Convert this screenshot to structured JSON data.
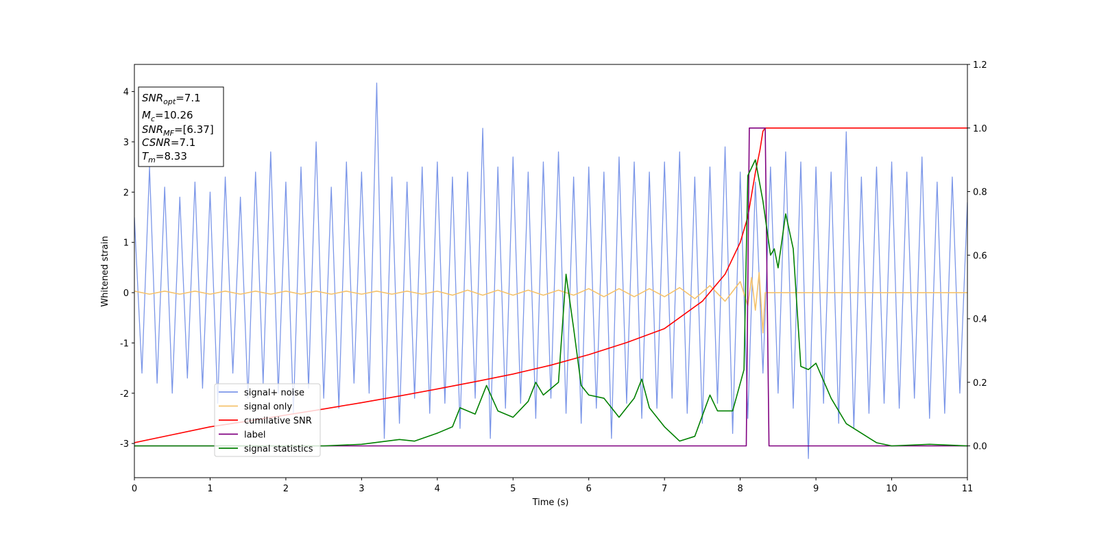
{
  "chart_data": {
    "type": "line",
    "xlabel": "Time (s)",
    "ylabel": "Whitened strain",
    "xlim": [
      0,
      11
    ],
    "ylim": [
      -3.68,
      4.54
    ],
    "y2lim": [
      -0.1,
      1.2
    ],
    "xticks": [
      0,
      1,
      2,
      3,
      4,
      5,
      6,
      7,
      8,
      9,
      10,
      11
    ],
    "yticks": [
      -3,
      -2,
      -1,
      0,
      1,
      2,
      3,
      4
    ],
    "y2ticks": [
      {
        "value": 0,
        "label": "0.0"
      },
      {
        "value": 0.2,
        "label": "0.2"
      },
      {
        "value": 0.4,
        "label": "0.4"
      },
      {
        "value": 0.6,
        "label": "0.6"
      },
      {
        "value": 0.8,
        "label": "0.8"
      },
      {
        "value": 1,
        "label": "1.0"
      },
      {
        "value": 1.2,
        "label": "1.2"
      }
    ],
    "annotations": [
      {
        "text": "SNR",
        "sub": "opt",
        "rest": "=7.1"
      },
      {
        "text": "M",
        "sub": "c",
        "rest": "=10.26"
      },
      {
        "text": "SNR",
        "sub": "MF",
        "rest": "=[6.37]"
      },
      {
        "text": "CSNR",
        "sub": "",
        "rest": "=7.1"
      },
      {
        "text": "T",
        "sub": "m",
        "rest": "=8.33"
      }
    ],
    "series": [
      {
        "name": "signal+ noise",
        "color": "#7b96e8",
        "axis": "y",
        "x": [
          0,
          0.1,
          0.2,
          0.3,
          0.4,
          0.5,
          0.6,
          0.7,
          0.8,
          0.9,
          1,
          1.1,
          1.2,
          1.3,
          1.4,
          1.5,
          1.6,
          1.7,
          1.8,
          1.9,
          2,
          2.1,
          2.2,
          2.3,
          2.4,
          2.5,
          2.6,
          2.7,
          2.8,
          2.9,
          3,
          3.1,
          3.2,
          3.3,
          3.4,
          3.5,
          3.6,
          3.7,
          3.8,
          3.9,
          4,
          4.1,
          4.2,
          4.3,
          4.4,
          4.5,
          4.6,
          4.7,
          4.8,
          4.9,
          5,
          5.1,
          5.2,
          5.3,
          5.4,
          5.5,
          5.6,
          5.7,
          5.8,
          5.9,
          6,
          6.1,
          6.2,
          6.3,
          6.4,
          6.5,
          6.6,
          6.7,
          6.8,
          6.9,
          7,
          7.1,
          7.2,
          7.3,
          7.4,
          7.5,
          7.6,
          7.7,
          7.8,
          7.9,
          8,
          8.1,
          8.2,
          8.3,
          8.4,
          8.5,
          8.6,
          8.7,
          8.8,
          8.9,
          9,
          9.1,
          9.2,
          9.3,
          9.4,
          9.5,
          9.6,
          9.7,
          9.8,
          9.9,
          10,
          10.1,
          10.2,
          10.3,
          10.4,
          10.5,
          10.6,
          10.7,
          10.8,
          10.9,
          11
        ],
        "values": [
          1.5,
          -1.6,
          2.5,
          -1.8,
          2.1,
          -2.0,
          1.9,
          -1.7,
          2.2,
          -1.9,
          2.0,
          -2.2,
          2.3,
          -1.6,
          1.9,
          -2.1,
          2.4,
          -1.8,
          2.8,
          -2.0,
          2.2,
          -2.4,
          2.5,
          -1.9,
          3.0,
          -2.1,
          2.1,
          -2.3,
          2.6,
          -1.8,
          2.4,
          -2.0,
          4.17,
          -2.9,
          2.3,
          -2.6,
          2.2,
          -2.1,
          2.5,
          -2.4,
          2.6,
          -2.2,
          2.3,
          -2.7,
          2.4,
          -2.1,
          3.27,
          -2.9,
          2.5,
          -2.3,
          2.7,
          -2.2,
          2.4,
          -2.5,
          2.6,
          -2.1,
          2.8,
          -2.4,
          2.3,
          -2.6,
          2.5,
          -2.3,
          2.4,
          -2.9,
          2.7,
          -2.2,
          2.6,
          -2.5,
          2.4,
          -2.3,
          2.6,
          -2.1,
          2.8,
          -2.4,
          2.3,
          -2.6,
          2.5,
          -2.2,
          2.9,
          -2.8,
          2.4,
          -2.5,
          2.2,
          -1.6,
          2.5,
          -2.0,
          2.8,
          -2.3,
          2.6,
          -3.3,
          2.5,
          -2.2,
          2.4,
          -2.6,
          3.2,
          -2.7,
          2.3,
          -2.4,
          2.5,
          -2.2,
          2.6,
          -2.3,
          2.4,
          -2.1,
          2.7,
          -2.5,
          2.2,
          -2.4,
          2.3,
          -2.0,
          1.8
        ]
      },
      {
        "name": "signal only",
        "color": "#f5c26b",
        "axis": "y",
        "x": [
          0,
          0.2,
          0.4,
          0.6,
          0.8,
          1,
          1.2,
          1.4,
          1.6,
          1.8,
          2,
          2.2,
          2.4,
          2.6,
          2.8,
          3,
          3.2,
          3.4,
          3.6,
          3.8,
          4,
          4.2,
          4.4,
          4.6,
          4.8,
          5,
          5.2,
          5.4,
          5.6,
          5.8,
          6,
          6.2,
          6.4,
          6.6,
          6.8,
          7,
          7.2,
          7.4,
          7.6,
          7.8,
          8,
          8.1,
          8.15,
          8.2,
          8.25,
          8.3,
          8.33,
          11
        ],
        "values": [
          0.03,
          -0.03,
          0.03,
          -0.03,
          0.03,
          -0.03,
          0.03,
          -0.03,
          0.03,
          -0.03,
          0.03,
          -0.03,
          0.03,
          -0.03,
          0.03,
          -0.03,
          0.03,
          -0.03,
          0.03,
          -0.03,
          0.03,
          -0.05,
          0.05,
          -0.05,
          0.05,
          -0.05,
          0.05,
          -0.05,
          0.05,
          -0.05,
          0.08,
          -0.08,
          0.08,
          -0.08,
          0.08,
          -0.08,
          0.1,
          -0.12,
          0.14,
          -0.17,
          0.22,
          -0.26,
          0.3,
          -0.35,
          0.4,
          -0.8,
          0,
          0
        ]
      },
      {
        "name": "cumilative SNR",
        "color": "#ff0000",
        "axis": "y2",
        "x": [
          0,
          0.5,
          1,
          1.5,
          2,
          2.5,
          3,
          3.5,
          4,
          4.5,
          5,
          5.5,
          6,
          6.5,
          7,
          7.5,
          7.8,
          8,
          8.1,
          8.2,
          8.26,
          8.3,
          8.33,
          11
        ],
        "values": [
          0.01,
          0.035,
          0.06,
          0.078,
          0.097,
          0.116,
          0.136,
          0.157,
          0.179,
          0.202,
          0.226,
          0.254,
          0.287,
          0.325,
          0.369,
          0.455,
          0.54,
          0.64,
          0.72,
          0.86,
          0.93,
          0.99,
          1.0,
          1.0
        ]
      },
      {
        "name": "label",
        "color": "#800080",
        "axis": "y2",
        "x": [
          0,
          8.08,
          8.12,
          8.33,
          8.38,
          11
        ],
        "values": [
          0,
          0,
          1,
          1,
          0,
          0
        ]
      },
      {
        "name": "signal statistics",
        "color": "#008000",
        "axis": "y2",
        "x": [
          0,
          2.5,
          3,
          3.5,
          3.7,
          4,
          4.2,
          4.3,
          4.5,
          4.65,
          4.8,
          5,
          5.2,
          5.3,
          5.4,
          5.6,
          5.7,
          5.8,
          5.9,
          6,
          6.2,
          6.4,
          6.6,
          6.7,
          6.8,
          7,
          7.2,
          7.4,
          7.6,
          7.7,
          7.9,
          8.05,
          8.1,
          8.2,
          8.3,
          8.4,
          8.45,
          8.5,
          8.6,
          8.7,
          8.8,
          8.9,
          9,
          9.2,
          9.4,
          9.6,
          9.8,
          10,
          10.5,
          11
        ],
        "values": [
          0,
          0,
          0.005,
          0.02,
          0.015,
          0.04,
          0.06,
          0.12,
          0.1,
          0.19,
          0.11,
          0.09,
          0.14,
          0.2,
          0.16,
          0.2,
          0.54,
          0.37,
          0.19,
          0.16,
          0.15,
          0.09,
          0.15,
          0.21,
          0.12,
          0.06,
          0.015,
          0.03,
          0.16,
          0.11,
          0.11,
          0.24,
          0.85,
          0.9,
          0.77,
          0.6,
          0.62,
          0.56,
          0.73,
          0.62,
          0.25,
          0.24,
          0.26,
          0.15,
          0.07,
          0.04,
          0.01,
          0,
          0.005,
          0
        ]
      }
    ]
  }
}
